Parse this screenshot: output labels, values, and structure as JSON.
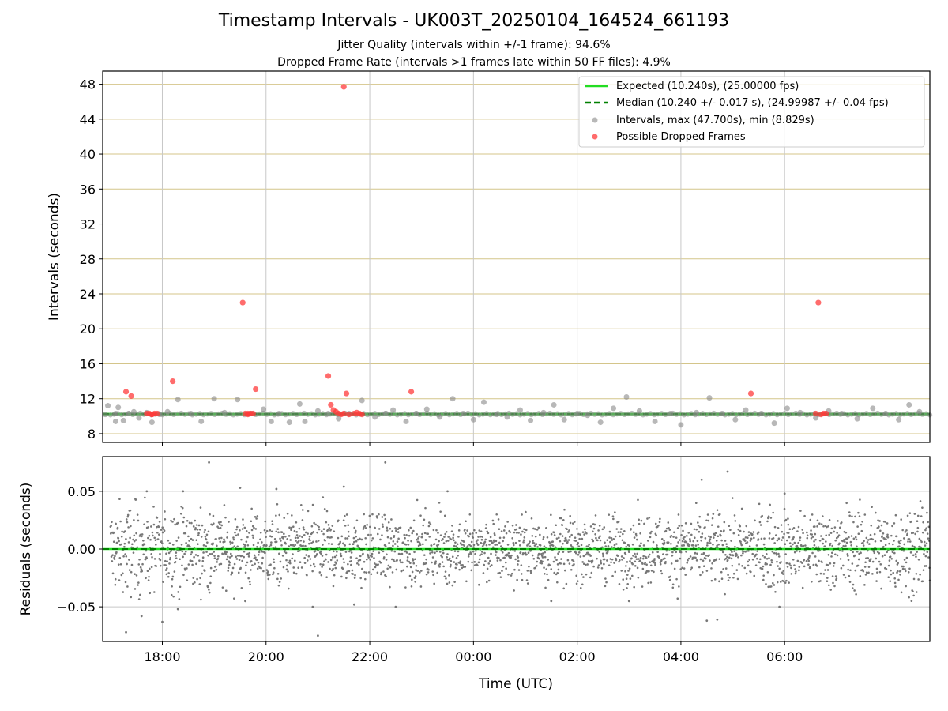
{
  "title": "Timestamp Intervals - UK003T_20250104_164524_661193",
  "subtitle_1": "Jitter Quality (intervals within +/-1 frame): 94.6%",
  "subtitle_2": "Dropped Frame Rate (intervals >1 frames late within 50 FF files): 4.9%",
  "colors": {
    "expected": "#22dd22",
    "median": "#008000",
    "intervals": "#888888",
    "dropped": "#ff3b3b",
    "hgrid_top": "#d4c58a",
    "vgrid": "#c8c8c8",
    "residuals": "#777777"
  },
  "chart_data": [
    {
      "type": "scatter",
      "panel": "top",
      "xlabel": "",
      "ylabel": "Intervals (seconds)",
      "x_unit": "hours since 17:00 UTC",
      "xlim": [
        -0.15,
        15.8
      ],
      "ylim": [
        7.0,
        49.5
      ],
      "yticks": [
        8,
        12,
        16,
        20,
        24,
        28,
        32,
        36,
        40,
        44,
        48
      ],
      "xtick_hours": [
        1,
        3,
        5,
        7,
        9,
        11,
        13
      ],
      "grid": true,
      "legend_position": "top-right",
      "legend": [
        "Expected (10.240s), (25.00000 fps)",
        "Median (10.240 +/- 0.017 s), (24.99987 +/- 0.04 fps)",
        "Intervals, max (47.700s), min (8.829s)",
        "Possible Dropped Frames"
      ],
      "expected_interval": 10.24,
      "median_interval": 10.24,
      "series": [
        {
          "name": "Intervals, max (47.700s), min (8.829s)",
          "x": [
            -0.1,
            -0.05,
            0.1,
            0.1,
            0.15,
            0.25,
            0.35,
            0.45,
            0.55,
            0.7,
            0.8,
            0.95,
            1.1,
            1.3,
            1.55,
            1.75,
            2.0,
            2.2,
            2.45,
            2.7,
            2.95,
            3.1,
            3.25,
            3.45,
            3.65,
            3.75,
            4.0,
            4.2,
            4.4,
            4.6,
            4.85,
            5.1,
            5.3,
            5.45,
            5.7,
            5.9,
            6.1,
            6.35,
            6.6,
            6.8,
            7.0,
            7.2,
            7.45,
            7.65,
            7.9,
            8.1,
            8.35,
            8.55,
            8.75,
            9.0,
            9.2,
            9.45,
            9.7,
            9.95,
            10.2,
            10.5,
            10.8,
            11.0,
            11.3,
            11.55,
            11.8,
            12.05,
            12.25,
            12.55,
            12.8,
            13.05,
            13.3,
            13.6,
            13.85,
            14.1,
            14.4,
            14.7,
            14.95,
            15.2,
            15.4,
            15.6
          ],
          "y": [
            10.2,
            11.2,
            10.3,
            9.4,
            11.0,
            9.5,
            10.3,
            10.5,
            9.8,
            10.4,
            9.3,
            10.2,
            10.5,
            11.9,
            10.3,
            9.4,
            12.0,
            10.4,
            11.9,
            10.3,
            10.8,
            9.4,
            10.3,
            9.3,
            11.4,
            9.4,
            10.6,
            10.3,
            9.7,
            10.3,
            11.8,
            9.9,
            10.3,
            10.7,
            9.4,
            10.3,
            10.8,
            9.9,
            12.0,
            10.3,
            9.6,
            11.6,
            10.2,
            9.9,
            10.7,
            9.5,
            10.4,
            11.3,
            9.6,
            10.3,
            10.1,
            9.3,
            10.9,
            12.2,
            10.6,
            9.4,
            10.3,
            9.0,
            10.4,
            12.1,
            10.3,
            9.6,
            10.7,
            10.3,
            9.2,
            10.9,
            10.4,
            9.8,
            10.6,
            10.3,
            9.7,
            10.9,
            10.3,
            9.6,
            11.3,
            10.5
          ]
        },
        {
          "name": "Possible Dropped Frames",
          "x": [
            0.3,
            0.4,
            0.7,
            0.75,
            0.8,
            0.85,
            0.9,
            1.2,
            2.55,
            2.6,
            2.65,
            2.7,
            2.75,
            2.8,
            4.2,
            4.25,
            4.3,
            4.35,
            4.4,
            4.45,
            4.5,
            4.6,
            4.7,
            4.75,
            4.8,
            4.85,
            4.5,
            4.55,
            5.8,
            12.35,
            13.6,
            13.7,
            13.75,
            13.8,
            13.65,
            2.65,
            0.8
          ],
          "y": [
            12.8,
            12.3,
            10.3,
            10.3,
            10.2,
            10.3,
            10.3,
            14.0,
            23.0,
            10.3,
            10.2,
            10.3,
            10.3,
            13.1,
            14.6,
            11.3,
            10.7,
            10.5,
            10.3,
            10.2,
            10.3,
            10.2,
            10.3,
            10.4,
            10.3,
            10.2,
            47.7,
            12.6,
            12.8,
            12.6,
            10.3,
            10.2,
            10.3,
            10.3,
            23.0,
            10.3,
            10.2
          ]
        }
      ]
    },
    {
      "type": "scatter",
      "panel": "bottom",
      "xlabel": "Time (UTC)",
      "ylabel": "Residuals (seconds)",
      "xlim": [
        -0.15,
        15.8
      ],
      "ylim": [
        -0.08,
        0.08
      ],
      "yticks": [
        -0.05,
        0.0,
        0.05
      ],
      "ytick_labels": [
        "−0.05",
        "0.00",
        "0.05"
      ],
      "xtick_hours": [
        1,
        3,
        5,
        7,
        9,
        11,
        13
      ],
      "xtick_labels": [
        "18:00",
        "20:00",
        "22:00",
        "00:00",
        "02:00",
        "04:00",
        "06:00"
      ],
      "grid": true,
      "x_range_points": [
        0.0,
        15.8
      ],
      "outliers": {
        "x": [
          1.0,
          1.3,
          1.4,
          1.9,
          2.5,
          2.6,
          3.2,
          4.0,
          4.5,
          4.7,
          5.3,
          5.5,
          6.5,
          10.0,
          11.4,
          11.9,
          11.5,
          12.9,
          11.7,
          0.3,
          0.7,
          0.6,
          3.9,
          8.5,
          13.0
        ],
        "y": [
          -0.063,
          -0.052,
          0.05,
          0.075,
          0.053,
          -0.045,
          0.052,
          -0.075,
          0.054,
          -0.048,
          0.075,
          -0.05,
          0.05,
          -0.045,
          0.06,
          0.067,
          -0.062,
          -0.05,
          -0.061,
          -0.072,
          0.05,
          -0.058,
          -0.05,
          -0.045,
          0.048
        ]
      }
    }
  ]
}
